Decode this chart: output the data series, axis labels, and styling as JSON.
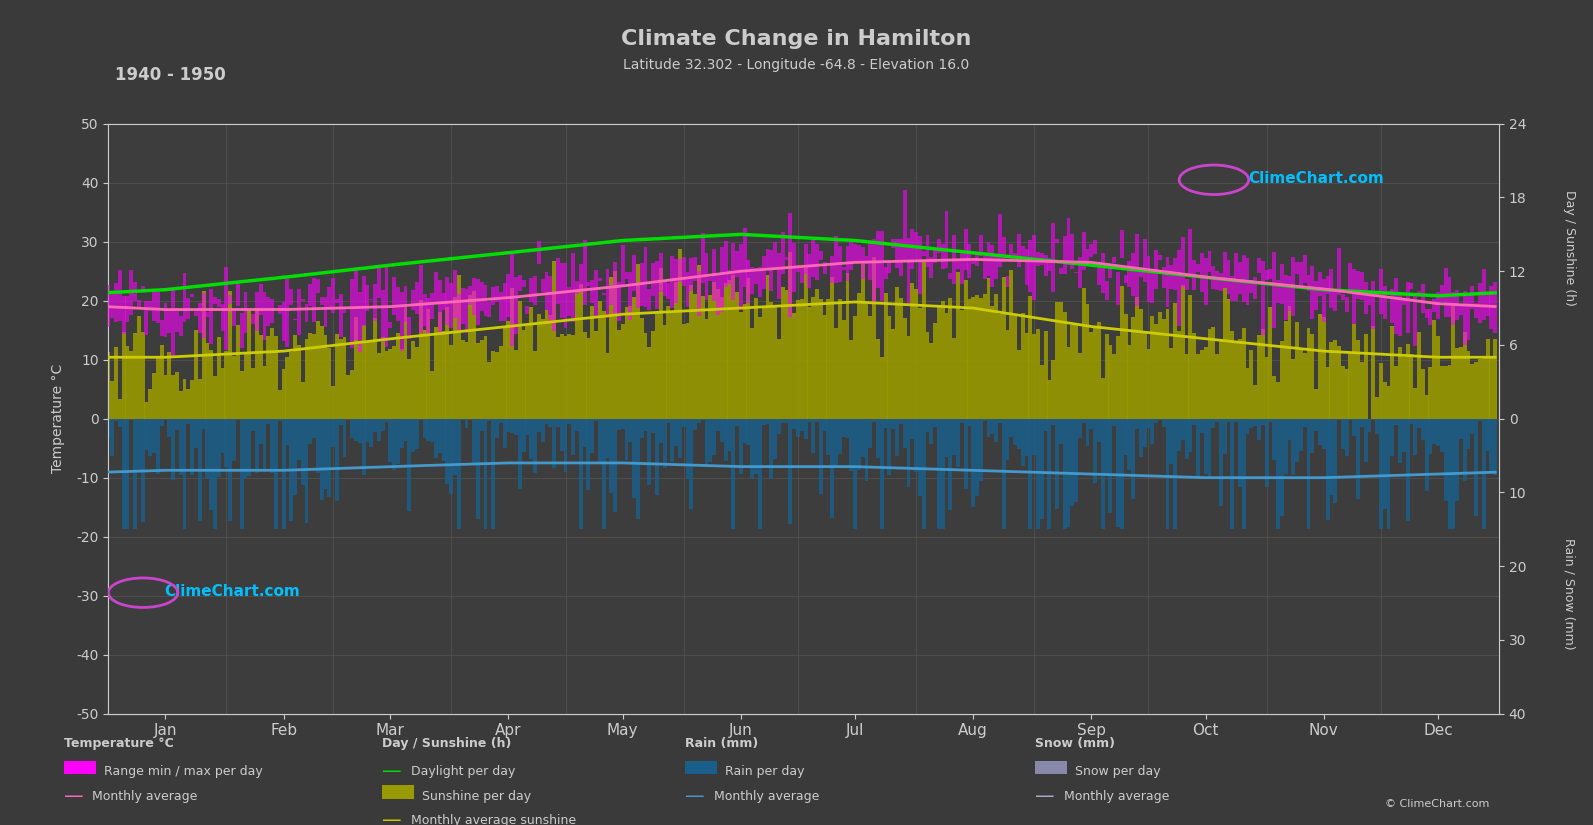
{
  "title": "Climate Change in Hamilton",
  "subtitle": "Latitude 32.302 - Longitude -64.8 - Elevation 16.0",
  "period": "1940 - 1950",
  "background_color": "#3a3a3a",
  "plot_bg_color": "#3d3d3d",
  "grid_color": "#555555",
  "text_color": "#cccccc",
  "temp_ylim": [
    -50,
    50
  ],
  "months": [
    "Jan",
    "Feb",
    "Mar",
    "Apr",
    "May",
    "Jun",
    "Jul",
    "Aug",
    "Sep",
    "Oct",
    "Nov",
    "Dec"
  ],
  "month_centers": [
    15,
    46,
    74,
    105,
    135,
    166,
    196,
    227,
    258,
    288,
    319,
    349
  ],
  "month_bounds": [
    0,
    31,
    59,
    90,
    120,
    151,
    181,
    212,
    243,
    273,
    304,
    334,
    365
  ],
  "temp_max_monthly": [
    21.0,
    21.0,
    22.0,
    23.5,
    25.5,
    27.5,
    29.0,
    29.5,
    28.5,
    26.5,
    24.0,
    22.0
  ],
  "temp_min_monthly": [
    16.0,
    16.0,
    16.5,
    18.0,
    20.0,
    22.5,
    24.5,
    25.0,
    24.0,
    22.0,
    19.5,
    17.0
  ],
  "temp_avg_monthly": [
    18.5,
    18.5,
    19.0,
    20.5,
    22.5,
    25.0,
    26.5,
    27.0,
    26.5,
    24.0,
    22.0,
    19.5
  ],
  "sunshine_avg_monthly": [
    5.0,
    5.5,
    6.5,
    7.5,
    8.5,
    9.0,
    9.5,
    9.0,
    7.5,
    6.5,
    5.5,
    5.0
  ],
  "daylight_avg_monthly": [
    10.5,
    11.5,
    12.5,
    13.5,
    14.5,
    15.0,
    14.5,
    13.5,
    12.5,
    11.5,
    10.5,
    10.0
  ],
  "rain_monthly_avg_mm": [
    7.0,
    7.0,
    6.5,
    6.0,
    6.0,
    6.5,
    6.5,
    7.0,
    7.5,
    8.0,
    8.0,
    7.5
  ],
  "temp_range_color": "#ff00ff",
  "temp_avg_color": "#ff69b4",
  "sunshine_fill_color": "#999900",
  "daylight_color": "#00dd00",
  "sunshine_avg_color": "#cccc00",
  "rain_fill_color": "#1a5f8a",
  "rain_avg_color": "#4499cc",
  "snow_fill_color": "#8888aa",
  "snow_avg_color": "#aaaacc",
  "right_axis_top_ticks": [
    0,
    6,
    12,
    18,
    24
  ],
  "right_axis_bottom_ticks": [
    0,
    10,
    20,
    30,
    40
  ],
  "left_axis_ticks": [
    -50,
    -40,
    -30,
    -20,
    -10,
    0,
    10,
    20,
    30,
    40,
    50
  ]
}
